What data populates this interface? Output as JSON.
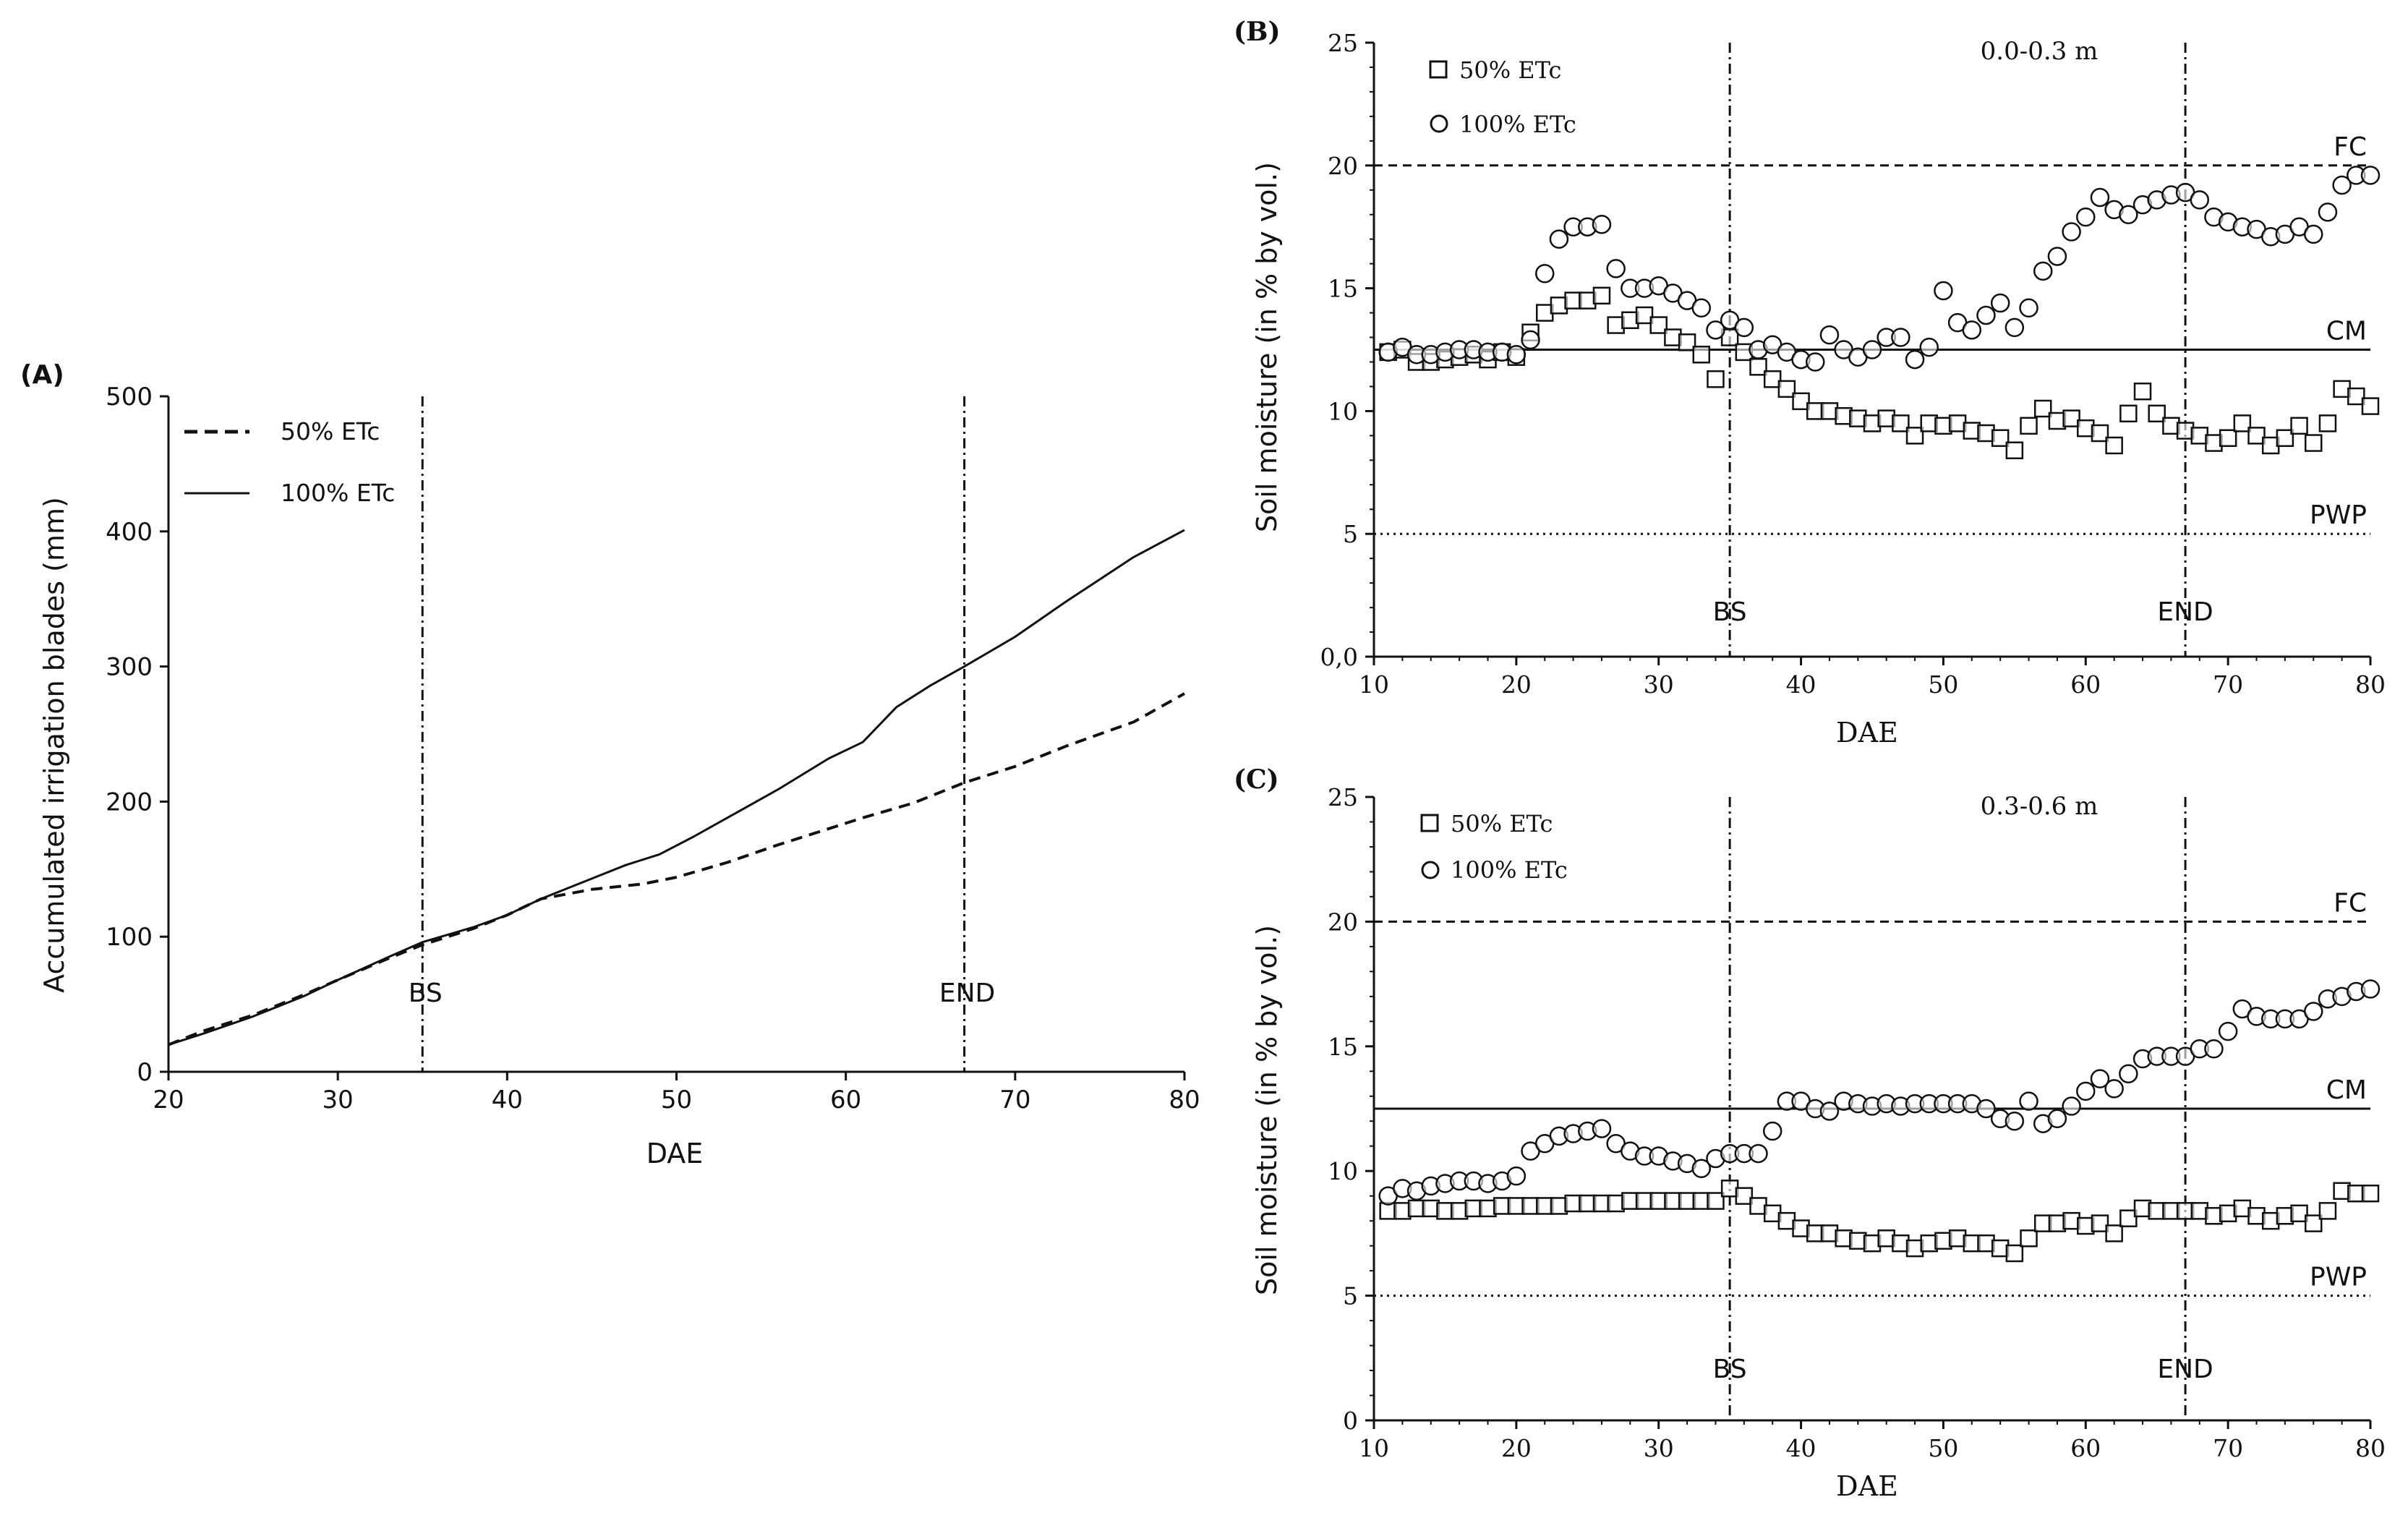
{
  "figure": {
    "colors": {
      "ink": "#111111",
      "background": "#ffffff"
    }
  },
  "chart_data": [
    {
      "id": "A",
      "type": "line",
      "panel_label": "(A)",
      "title": "",
      "xlabel": "DAE",
      "ylabel": "Accumulated irrigation blades (mm)",
      "xlim": [
        20,
        80
      ],
      "ylim": [
        0,
        500
      ],
      "xticks": [
        20,
        30,
        40,
        50,
        60,
        70,
        80
      ],
      "yticks": [
        0,
        100,
        200,
        300,
        400,
        500
      ],
      "grid": false,
      "legend_position": "top-left",
      "vlines": [
        {
          "x": 35,
          "label": "BS"
        },
        {
          "x": 67,
          "label": "END"
        }
      ],
      "series": [
        {
          "name": "50% ETc",
          "style": "dashed",
          "x": [
            20,
            22,
            25,
            28,
            30,
            33,
            35,
            38,
            40,
            42,
            45,
            48,
            50,
            53,
            56,
            59,
            61,
            64,
            67,
            70,
            73,
            77,
            80
          ],
          "values": [
            20,
            30,
            42,
            57,
            68,
            84,
            94,
            106,
            116,
            128,
            135,
            139,
            144,
            155,
            168,
            180,
            188,
            199,
            214,
            226,
            241,
            259,
            280
          ]
        },
        {
          "name": "100% ETc",
          "style": "solid",
          "x": [
            20,
            22,
            25,
            28,
            30,
            33,
            35,
            38,
            40,
            42,
            45,
            47,
            49,
            51,
            53,
            56,
            59,
            61,
            63,
            65,
            67,
            70,
            73,
            77,
            80
          ],
          "values": [
            20,
            28,
            41,
            56,
            68,
            85,
            96,
            107,
            116,
            128,
            143,
            153,
            161,
            174,
            188,
            209,
            232,
            244,
            270,
            286,
            300,
            322,
            348,
            381,
            401
          ]
        }
      ]
    },
    {
      "id": "B",
      "type": "scatter",
      "panel_label": "(B)",
      "title": "0.0-0.3 m",
      "xlabel": "DAE",
      "ylabel": "Soil moisture (in % by vol.)",
      "xlim": [
        10,
        80
      ],
      "ylim": [
        0,
        25
      ],
      "xticks": [
        10,
        20,
        30,
        40,
        50,
        60,
        70,
        80
      ],
      "yticks": [
        0,
        5,
        10,
        15,
        20,
        25
      ],
      "ytick_labels": [
        "0,0",
        "5",
        "10",
        "15",
        "20",
        "25"
      ],
      "grid": false,
      "legend_position": "top-left",
      "hlines": [
        {
          "y": 20,
          "label": "FC",
          "style": "dashed"
        },
        {
          "y": 12.5,
          "label": "CM",
          "style": "solid"
        },
        {
          "y": 5,
          "label": "PWP",
          "style": "dotted"
        }
      ],
      "vlines": [
        {
          "x": 35,
          "label": "BS"
        },
        {
          "x": 67,
          "label": "END"
        }
      ],
      "series": [
        {
          "name": "50% ETc",
          "marker": "square",
          "x": [
            11,
            12,
            13,
            14,
            15,
            16,
            17,
            18,
            19,
            20,
            21,
            22,
            23,
            24,
            25,
            26,
            27,
            28,
            29,
            30,
            31,
            32,
            33,
            34,
            35,
            36,
            37,
            38,
            39,
            40,
            41,
            42,
            43,
            44,
            45,
            46,
            47,
            48,
            49,
            50,
            51,
            52,
            53,
            54,
            55,
            56,
            57,
            58,
            59,
            60,
            61,
            62,
            63,
            64,
            65,
            66,
            67,
            68,
            69,
            70,
            71,
            72,
            73,
            74,
            75,
            76,
            77,
            78,
            79,
            80
          ],
          "values": [
            12.4,
            12.5,
            12.0,
            12.0,
            12.1,
            12.2,
            12.3,
            12.1,
            12.4,
            12.2,
            13.2,
            14.0,
            14.3,
            14.5,
            14.5,
            14.7,
            13.5,
            13.7,
            13.9,
            13.5,
            13.0,
            12.8,
            12.3,
            11.3,
            13.0,
            12.4,
            11.8,
            11.3,
            10.9,
            10.4,
            10.0,
            10.0,
            9.8,
            9.7,
            9.5,
            9.7,
            9.5,
            9.0,
            9.5,
            9.4,
            9.5,
            9.2,
            9.1,
            8.9,
            8.4,
            9.4,
            10.1,
            9.6,
            9.7,
            9.3,
            9.1,
            8.6,
            9.9,
            10.8,
            9.9,
            9.4,
            9.2,
            9.0,
            8.7,
            8.9,
            9.5,
            9.0,
            8.6,
            8.9,
            9.4,
            8.7,
            9.5,
            10.9,
            10.6,
            10.2
          ]
        },
        {
          "name": "100% ETc",
          "marker": "circle",
          "x": [
            11,
            12,
            13,
            14,
            15,
            16,
            17,
            18,
            19,
            20,
            21,
            22,
            23,
            24,
            25,
            26,
            27,
            28,
            29,
            30,
            31,
            32,
            33,
            34,
            35,
            36,
            37,
            38,
            39,
            40,
            41,
            42,
            43,
            44,
            45,
            46,
            47,
            48,
            49,
            50,
            51,
            52,
            53,
            54,
            55,
            56,
            57,
            58,
            59,
            60,
            61,
            62,
            63,
            64,
            65,
            66,
            67,
            68,
            69,
            70,
            71,
            72,
            73,
            74,
            75,
            76,
            77,
            78,
            79,
            80
          ],
          "values": [
            12.4,
            12.6,
            12.3,
            12.3,
            12.4,
            12.5,
            12.5,
            12.4,
            12.4,
            12.3,
            12.9,
            15.6,
            17.0,
            17.5,
            17.5,
            17.6,
            15.8,
            15.0,
            15.0,
            15.1,
            14.8,
            14.5,
            14.2,
            13.3,
            13.7,
            13.4,
            12.5,
            12.7,
            12.4,
            12.1,
            12.0,
            13.1,
            12.5,
            12.2,
            12.5,
            13.0,
            13.0,
            12.1,
            12.6,
            14.9,
            13.6,
            13.3,
            13.9,
            14.4,
            13.4,
            14.2,
            15.7,
            16.3,
            17.3,
            17.9,
            18.7,
            18.2,
            18.0,
            18.4,
            18.6,
            18.8,
            18.9,
            18.6,
            17.9,
            17.7,
            17.5,
            17.4,
            17.1,
            17.2,
            17.5,
            17.2,
            18.1,
            19.2,
            19.6,
            19.6
          ]
        }
      ]
    },
    {
      "id": "C",
      "type": "scatter",
      "panel_label": "(C)",
      "title": "0.3-0.6 m",
      "xlabel": "DAE",
      "ylabel": "Soil moisture (in % by vol.)",
      "xlim": [
        10,
        80
      ],
      "ylim": [
        0,
        25
      ],
      "xticks": [
        10,
        20,
        30,
        40,
        50,
        60,
        70,
        80
      ],
      "yticks": [
        0,
        5,
        10,
        15,
        20,
        25
      ],
      "ytick_labels": [
        "0",
        "5",
        "10",
        "15",
        "20",
        "25"
      ],
      "grid": false,
      "legend_position": "top-left",
      "hlines": [
        {
          "y": 20,
          "label": "FC",
          "style": "dashed"
        },
        {
          "y": 12.5,
          "label": "CM",
          "style": "solid"
        },
        {
          "y": 5,
          "label": "PWP",
          "style": "dotted"
        }
      ],
      "vlines": [
        {
          "x": 35,
          "label": "BS"
        },
        {
          "x": 67,
          "label": "END"
        }
      ],
      "series": [
        {
          "name": "50% ETc",
          "marker": "square",
          "x": [
            11,
            12,
            13,
            14,
            15,
            16,
            17,
            18,
            19,
            20,
            21,
            22,
            23,
            24,
            25,
            26,
            27,
            28,
            29,
            30,
            31,
            32,
            33,
            34,
            35,
            36,
            37,
            38,
            39,
            40,
            41,
            42,
            43,
            44,
            45,
            46,
            47,
            48,
            49,
            50,
            51,
            52,
            53,
            54,
            55,
            56,
            57,
            58,
            59,
            60,
            61,
            62,
            63,
            64,
            65,
            66,
            67,
            68,
            69,
            70,
            71,
            72,
            73,
            74,
            75,
            76,
            77,
            78,
            79,
            80
          ],
          "values": [
            8.4,
            8.4,
            8.5,
            8.5,
            8.4,
            8.4,
            8.5,
            8.5,
            8.6,
            8.6,
            8.6,
            8.6,
            8.6,
            8.7,
            8.7,
            8.7,
            8.7,
            8.8,
            8.8,
            8.8,
            8.8,
            8.8,
            8.8,
            8.8,
            9.3,
            9.0,
            8.6,
            8.3,
            8.0,
            7.7,
            7.5,
            7.5,
            7.3,
            7.2,
            7.1,
            7.3,
            7.1,
            6.9,
            7.1,
            7.2,
            7.3,
            7.1,
            7.1,
            6.9,
            6.7,
            7.3,
            7.9,
            7.9,
            8.0,
            7.8,
            7.9,
            7.5,
            8.1,
            8.5,
            8.4,
            8.4,
            8.4,
            8.4,
            8.2,
            8.3,
            8.5,
            8.2,
            8.0,
            8.2,
            8.3,
            7.9,
            8.4,
            9.2,
            9.1,
            9.1
          ]
        },
        {
          "name": "100% ETc",
          "marker": "circle",
          "x": [
            11,
            12,
            13,
            14,
            15,
            16,
            17,
            18,
            19,
            20,
            21,
            22,
            23,
            24,
            25,
            26,
            27,
            28,
            29,
            30,
            31,
            32,
            33,
            34,
            35,
            36,
            37,
            38,
            39,
            40,
            41,
            42,
            43,
            44,
            45,
            46,
            47,
            48,
            49,
            50,
            51,
            52,
            53,
            54,
            55,
            56,
            57,
            58,
            59,
            60,
            61,
            62,
            63,
            64,
            65,
            66,
            67,
            68,
            69,
            70,
            71,
            72,
            73,
            74,
            75,
            76,
            77,
            78,
            79,
            80
          ],
          "values": [
            9.0,
            9.3,
            9.2,
            9.4,
            9.5,
            9.6,
            9.6,
            9.5,
            9.6,
            9.8,
            10.8,
            11.1,
            11.4,
            11.5,
            11.6,
            11.7,
            11.1,
            10.8,
            10.6,
            10.6,
            10.4,
            10.3,
            10.1,
            10.5,
            10.7,
            10.7,
            10.7,
            11.6,
            12.8,
            12.8,
            12.5,
            12.4,
            12.8,
            12.7,
            12.6,
            12.7,
            12.6,
            12.7,
            12.7,
            12.7,
            12.7,
            12.7,
            12.5,
            12.1,
            12.0,
            12.8,
            11.9,
            12.1,
            12.6,
            13.2,
            13.7,
            13.3,
            13.9,
            14.5,
            14.6,
            14.6,
            14.6,
            14.9,
            14.9,
            15.6,
            16.5,
            16.2,
            16.1,
            16.1,
            16.1,
            16.4,
            16.9,
            17.0,
            17.2,
            17.3
          ]
        }
      ]
    }
  ]
}
